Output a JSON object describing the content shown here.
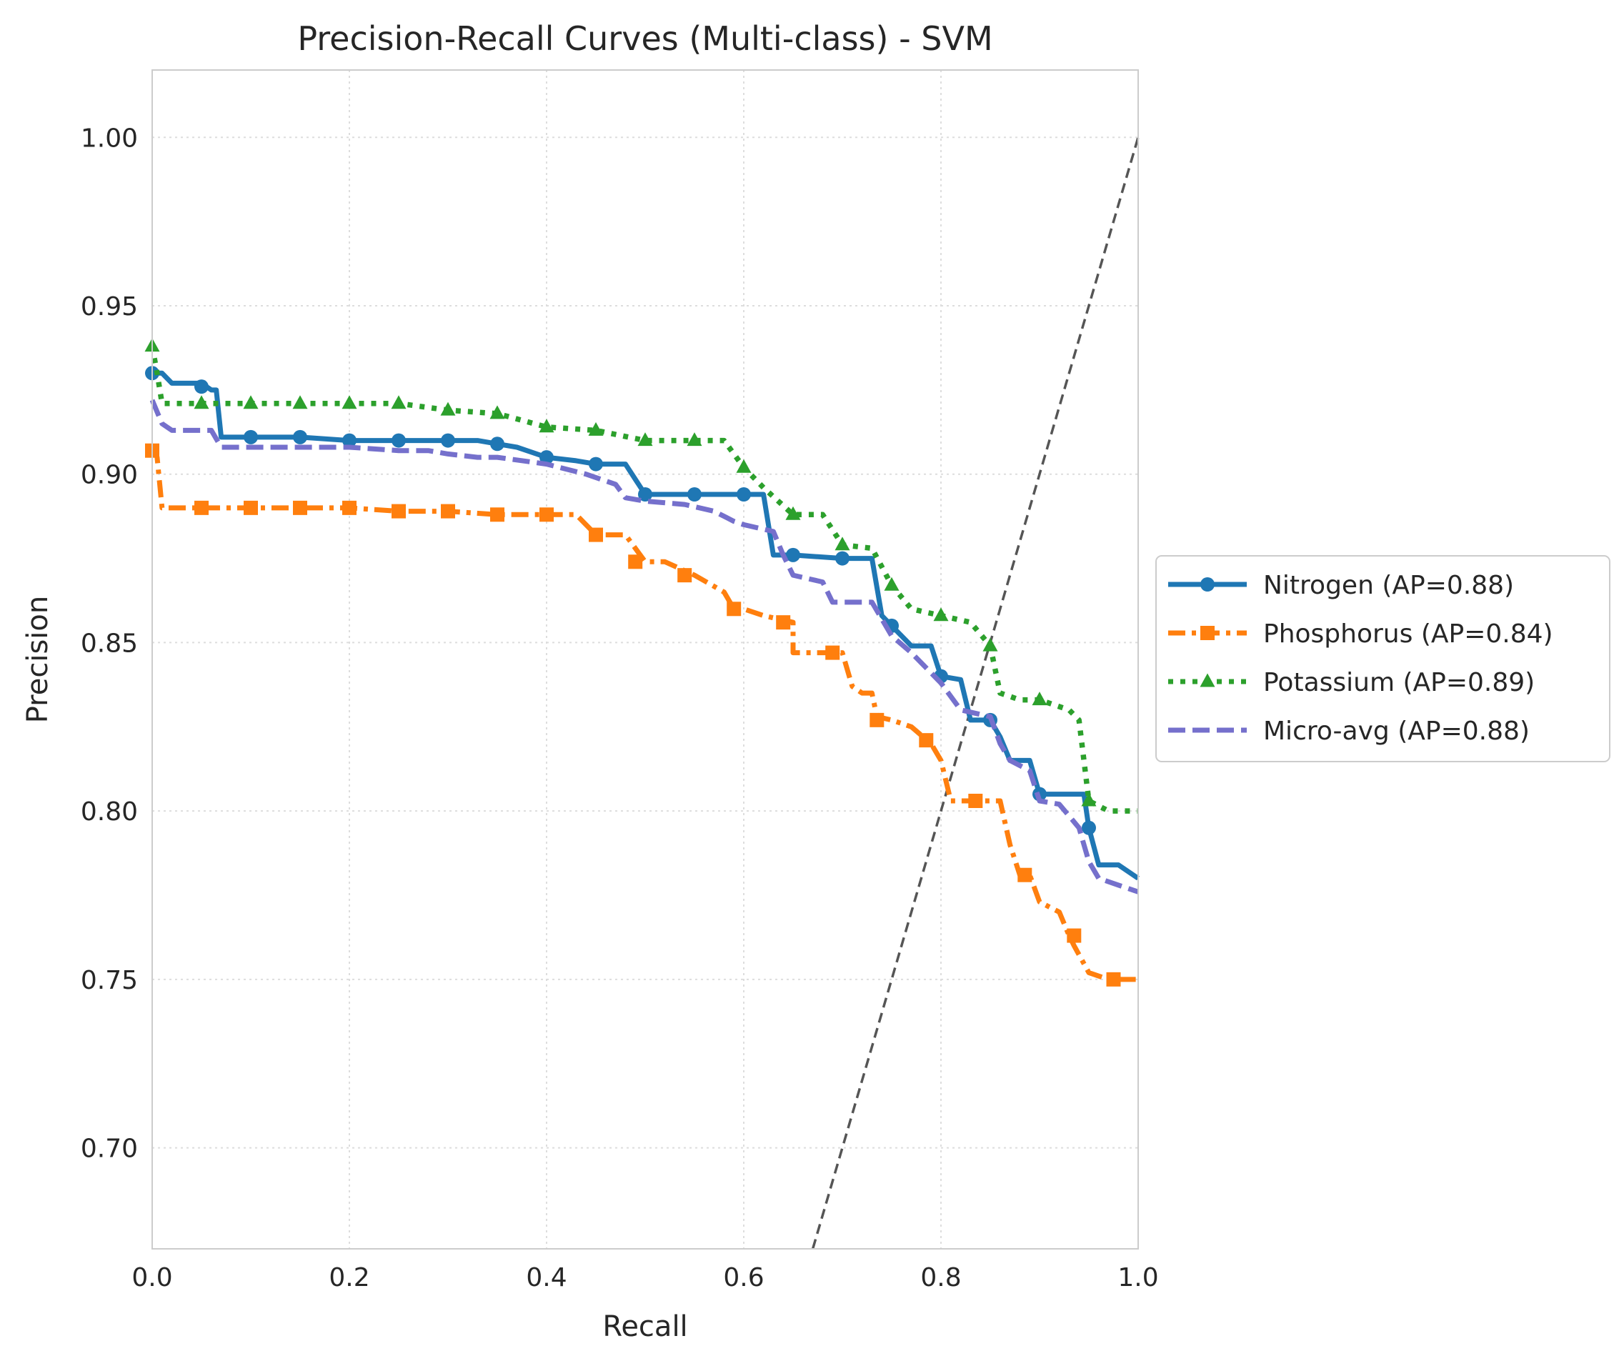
{
  "chart_data": {
    "type": "line",
    "title": "Precision-Recall Curves (Multi-class) - SVM",
    "xlabel": "Recall",
    "ylabel": "Precision",
    "xlim": [
      0.0,
      1.0
    ],
    "ylim": [
      0.67,
      1.02
    ],
    "xticks": [
      0.0,
      0.2,
      0.4,
      0.6,
      0.8,
      1.0
    ],
    "xtick_labels": [
      "0.0",
      "0.2",
      "0.4",
      "0.6",
      "0.8",
      "1.0"
    ],
    "yticks": [
      0.7,
      0.75,
      0.8,
      0.85,
      0.9,
      0.95,
      1.0
    ],
    "ytick_labels": [
      "0.70",
      "0.75",
      "0.80",
      "0.85",
      "0.90",
      "0.95",
      "1.00"
    ],
    "grid": true,
    "legend_position": "right-outside",
    "reference_line": {
      "x": [
        0.67,
        1.0
      ],
      "y": [
        0.67,
        1.0
      ],
      "color": "#555555",
      "style": "dashed"
    },
    "series": [
      {
        "name": "Nitrogen (AP=0.88)",
        "color": "#1f77b4",
        "line_style": "solid",
        "marker": "circle",
        "x": [
          0.0,
          0.01,
          0.02,
          0.05,
          0.06,
          0.065,
          0.07,
          0.1,
          0.15,
          0.2,
          0.25,
          0.3,
          0.33,
          0.35,
          0.37,
          0.4,
          0.43,
          0.45,
          0.48,
          0.5,
          0.55,
          0.6,
          0.62,
          0.63,
          0.65,
          0.7,
          0.73,
          0.74,
          0.75,
          0.77,
          0.79,
          0.8,
          0.82,
          0.83,
          0.85,
          0.86,
          0.87,
          0.89,
          0.9,
          0.93,
          0.945,
          0.95,
          0.96,
          0.98,
          1.0
        ],
        "y": [
          0.93,
          0.93,
          0.927,
          0.927,
          0.925,
          0.925,
          0.911,
          0.911,
          0.911,
          0.91,
          0.91,
          0.91,
          0.91,
          0.909,
          0.908,
          0.905,
          0.904,
          0.903,
          0.903,
          0.894,
          0.894,
          0.894,
          0.894,
          0.876,
          0.876,
          0.875,
          0.875,
          0.858,
          0.855,
          0.849,
          0.849,
          0.84,
          0.839,
          0.827,
          0.827,
          0.822,
          0.815,
          0.815,
          0.805,
          0.805,
          0.805,
          0.795,
          0.784,
          0.784,
          0.78
        ],
        "marker_x": [
          0.0,
          0.05,
          0.1,
          0.15,
          0.2,
          0.25,
          0.3,
          0.35,
          0.4,
          0.45,
          0.5,
          0.55,
          0.6,
          0.65,
          0.7,
          0.75,
          0.8,
          0.85,
          0.9,
          0.95
        ],
        "marker_y": [
          0.93,
          0.926,
          0.911,
          0.911,
          0.91,
          0.91,
          0.91,
          0.909,
          0.905,
          0.903,
          0.894,
          0.894,
          0.894,
          0.876,
          0.875,
          0.855,
          0.84,
          0.827,
          0.805,
          0.795
        ]
      },
      {
        "name": "Phosphorus (AP=0.84)",
        "color": "#ff7f0e",
        "line_style": "dashdot",
        "marker": "square",
        "x": [
          0.0,
          0.005,
          0.01,
          0.05,
          0.1,
          0.15,
          0.2,
          0.25,
          0.3,
          0.35,
          0.38,
          0.4,
          0.43,
          0.45,
          0.48,
          0.5,
          0.52,
          0.55,
          0.58,
          0.59,
          0.6,
          0.62,
          0.65,
          0.65,
          0.67,
          0.7,
          0.71,
          0.72,
          0.73,
          0.735,
          0.75,
          0.77,
          0.79,
          0.8,
          0.81,
          0.82,
          0.84,
          0.86,
          0.87,
          0.88,
          0.89,
          0.9,
          0.92,
          0.93,
          0.935,
          0.95,
          0.97,
          1.0
        ],
        "y": [
          0.908,
          0.905,
          0.89,
          0.89,
          0.89,
          0.89,
          0.89,
          0.889,
          0.889,
          0.888,
          0.888,
          0.888,
          0.888,
          0.882,
          0.882,
          0.874,
          0.874,
          0.87,
          0.865,
          0.86,
          0.86,
          0.858,
          0.856,
          0.847,
          0.847,
          0.847,
          0.837,
          0.835,
          0.835,
          0.828,
          0.827,
          0.825,
          0.82,
          0.815,
          0.803,
          0.803,
          0.803,
          0.803,
          0.79,
          0.781,
          0.781,
          0.773,
          0.77,
          0.763,
          0.76,
          0.752,
          0.75,
          0.75
        ],
        "marker_x": [
          0.0,
          0.05,
          0.1,
          0.15,
          0.2,
          0.25,
          0.3,
          0.35,
          0.4,
          0.45,
          0.49,
          0.54,
          0.59,
          0.64,
          0.69,
          0.735,
          0.785,
          0.835,
          0.885,
          0.935,
          0.975
        ],
        "marker_y": [
          0.907,
          0.89,
          0.89,
          0.89,
          0.89,
          0.889,
          0.889,
          0.888,
          0.888,
          0.882,
          0.874,
          0.87,
          0.86,
          0.856,
          0.847,
          0.827,
          0.821,
          0.803,
          0.781,
          0.763,
          0.75
        ]
      },
      {
        "name": "Potassium (AP=0.89)",
        "color": "#2ca02c",
        "line_style": "dotted",
        "marker": "triangle",
        "x": [
          0.0,
          0.005,
          0.01,
          0.05,
          0.1,
          0.15,
          0.2,
          0.25,
          0.3,
          0.35,
          0.4,
          0.45,
          0.5,
          0.55,
          0.58,
          0.6,
          0.62,
          0.65,
          0.68,
          0.7,
          0.73,
          0.75,
          0.77,
          0.8,
          0.83,
          0.85,
          0.86,
          0.88,
          0.9,
          0.93,
          0.94,
          0.95,
          0.97,
          1.0
        ],
        "y": [
          0.938,
          0.93,
          0.921,
          0.921,
          0.921,
          0.921,
          0.921,
          0.921,
          0.919,
          0.918,
          0.914,
          0.913,
          0.91,
          0.91,
          0.91,
          0.902,
          0.896,
          0.888,
          0.888,
          0.879,
          0.878,
          0.867,
          0.86,
          0.858,
          0.856,
          0.849,
          0.835,
          0.833,
          0.833,
          0.83,
          0.827,
          0.803,
          0.8,
          0.8
        ],
        "marker_x": [
          0.0,
          0.05,
          0.1,
          0.15,
          0.2,
          0.25,
          0.3,
          0.35,
          0.4,
          0.45,
          0.5,
          0.55,
          0.6,
          0.65,
          0.7,
          0.75,
          0.8,
          0.85,
          0.9,
          0.95
        ],
        "marker_y": [
          0.938,
          0.921,
          0.921,
          0.921,
          0.921,
          0.921,
          0.919,
          0.918,
          0.914,
          0.913,
          0.91,
          0.91,
          0.902,
          0.888,
          0.879,
          0.867,
          0.858,
          0.849,
          0.833,
          0.803
        ]
      },
      {
        "name": "Micro-avg (AP=0.88)",
        "color": "#7570cc",
        "line_style": "dashed",
        "marker": "none",
        "x": [
          0.0,
          0.01,
          0.02,
          0.06,
          0.07,
          0.1,
          0.15,
          0.2,
          0.25,
          0.28,
          0.3,
          0.33,
          0.35,
          0.4,
          0.44,
          0.47,
          0.48,
          0.5,
          0.54,
          0.57,
          0.59,
          0.6,
          0.63,
          0.64,
          0.65,
          0.68,
          0.69,
          0.7,
          0.73,
          0.75,
          0.77,
          0.8,
          0.82,
          0.85,
          0.86,
          0.87,
          0.89,
          0.9,
          0.92,
          0.94,
          0.95,
          0.96,
          0.98,
          1.0
        ],
        "y": [
          0.922,
          0.915,
          0.913,
          0.913,
          0.908,
          0.908,
          0.908,
          0.908,
          0.907,
          0.907,
          0.906,
          0.905,
          0.905,
          0.903,
          0.9,
          0.897,
          0.893,
          0.892,
          0.891,
          0.889,
          0.886,
          0.885,
          0.883,
          0.876,
          0.87,
          0.868,
          0.862,
          0.862,
          0.862,
          0.852,
          0.847,
          0.838,
          0.83,
          0.828,
          0.82,
          0.815,
          0.812,
          0.803,
          0.802,
          0.795,
          0.785,
          0.78,
          0.778,
          0.776
        ],
        "marker_x": [],
        "marker_y": []
      }
    ]
  }
}
